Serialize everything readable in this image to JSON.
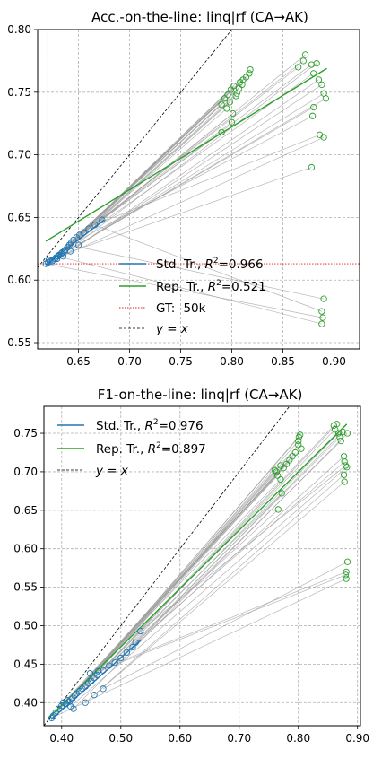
{
  "charts": [
    {
      "id": "acc",
      "title": "Acc.-on-the-line: linq|rf  (CA→AK)",
      "xlim": [
        0.61,
        0.925
      ],
      "ylim": [
        0.545,
        0.8
      ],
      "xticks": [
        "0.65",
        "0.70",
        "0.75",
        "0.80",
        "0.85",
        "0.90"
      ],
      "xtick_values": [
        0.65,
        0.7,
        0.75,
        0.8,
        0.85,
        0.9
      ],
      "yticks": [
        "0.55",
        "0.60",
        "0.65",
        "0.70",
        "0.75",
        "0.80"
      ],
      "ytick_values": [
        0.55,
        0.6,
        0.65,
        0.7,
        0.75,
        0.8
      ],
      "legend": {
        "std": {
          "prefix": "Std. Tr., ",
          "r2": "0.966"
        },
        "rep": {
          "prefix": "Rep. Tr., ",
          "r2": "0.521"
        },
        "gt": "GT: -50k",
        "yx": "y = x"
      },
      "gt": {
        "x": 0.62,
        "y": 0.613
      }
    },
    {
      "id": "f1",
      "title": "F1-on-the-line: linq|rf  (CA→AK)",
      "xlim": [
        0.37,
        0.905
      ],
      "ylim": [
        0.37,
        0.785
      ],
      "xticks": [
        "0.40",
        "0.50",
        "0.60",
        "0.70",
        "0.80",
        "0.90"
      ],
      "xtick_values": [
        0.4,
        0.5,
        0.6,
        0.7,
        0.8,
        0.9
      ],
      "yticks": [
        "0.40",
        "0.45",
        "0.50",
        "0.55",
        "0.60",
        "0.65",
        "0.70",
        "0.75"
      ],
      "ytick_values": [
        0.4,
        0.45,
        0.5,
        0.55,
        0.6,
        0.65,
        0.7,
        0.75
      ],
      "legend": {
        "std": {
          "prefix": "Std. Tr., ",
          "r2": "0.976"
        },
        "rep": {
          "prefix": "Rep. Tr., ",
          "r2": "0.897"
        },
        "yx": "y = x"
      }
    }
  ],
  "colors": {
    "std": "#1f77b4",
    "rep": "#2ca02c",
    "conn": "#9e9e9e",
    "gt": "#e41a1c",
    "grid": "#b0b0b0"
  },
  "chart_data": [
    {
      "type": "scatter",
      "title": "Acc.-on-the-line: linq|rf  (CA→AK)",
      "xlim": [
        0.61,
        0.925
      ],
      "ylim": [
        0.545,
        0.8
      ],
      "grid": true,
      "legend_placement": "lower-center",
      "series": [
        {
          "name": "Std. Tr., R²=0.966",
          "color": "#1f77b4",
          "points": [
            [
              0.618,
              0.613
            ],
            [
              0.62,
              0.614
            ],
            [
              0.622,
              0.615
            ],
            [
              0.624,
              0.615
            ],
            [
              0.625,
              0.616
            ],
            [
              0.627,
              0.617
            ],
            [
              0.628,
              0.618
            ],
            [
              0.63,
              0.619
            ],
            [
              0.631,
              0.62
            ],
            [
              0.633,
              0.621
            ],
            [
              0.634,
              0.622
            ],
            [
              0.636,
              0.623
            ],
            [
              0.637,
              0.624
            ],
            [
              0.639,
              0.626
            ],
            [
              0.641,
              0.628
            ],
            [
              0.643,
              0.63
            ],
            [
              0.645,
              0.632
            ],
            [
              0.648,
              0.634
            ],
            [
              0.651,
              0.636
            ],
            [
              0.655,
              0.638
            ],
            [
              0.66,
              0.641
            ],
            [
              0.666,
              0.644
            ],
            [
              0.673,
              0.648
            ],
            [
              0.621,
              0.616
            ],
            [
              0.629,
              0.617
            ],
            [
              0.635,
              0.619
            ],
            [
              0.642,
              0.623
            ],
            [
              0.65,
              0.628
            ]
          ],
          "fit": {
            "x": [
              0.618,
              0.675
            ],
            "y": [
              0.612,
              0.648
            ]
          }
        },
        {
          "name": "Rep. Tr., R²=0.521",
          "color": "#2ca02c",
          "points": [
            [
              0.79,
              0.74
            ],
            [
              0.793,
              0.745
            ],
            [
              0.796,
              0.748
            ],
            [
              0.799,
              0.752
            ],
            [
              0.802,
              0.755
            ],
            [
              0.805,
              0.749
            ],
            [
              0.808,
              0.758
            ],
            [
              0.811,
              0.76
            ],
            [
              0.814,
              0.762
            ],
            [
              0.817,
              0.765
            ],
            [
              0.795,
              0.737
            ],
            [
              0.798,
              0.742
            ],
            [
              0.801,
              0.733
            ],
            [
              0.804,
              0.747
            ],
            [
              0.807,
              0.753
            ],
            [
              0.81,
              0.756
            ],
            [
              0.79,
              0.718
            ],
            [
              0.8,
              0.726
            ],
            [
              0.818,
              0.768
            ],
            [
              0.865,
              0.77
            ],
            [
              0.87,
              0.775
            ],
            [
              0.872,
              0.78
            ],
            [
              0.878,
              0.772
            ],
            [
              0.88,
              0.765
            ],
            [
              0.883,
              0.773
            ],
            [
              0.885,
              0.76
            ],
            [
              0.888,
              0.756
            ],
            [
              0.89,
              0.749
            ],
            [
              0.892,
              0.745
            ],
            [
              0.88,
              0.738
            ],
            [
              0.879,
              0.731
            ],
            [
              0.886,
              0.716
            ],
            [
              0.89,
              0.714
            ],
            [
              0.878,
              0.69
            ],
            [
              0.89,
              0.585
            ],
            [
              0.888,
              0.575
            ],
            [
              0.889,
              0.57
            ],
            [
              0.888,
              0.565
            ]
          ],
          "fit": {
            "x": [
              0.618,
              0.893
            ],
            "y": [
              0.631,
              0.769
            ]
          }
        },
        {
          "name": "GT: -50k",
          "x": 0.62,
          "y": 0.613
        },
        {
          "name": "y = x",
          "x": [
            0.61,
            0.8
          ],
          "y": [
            0.61,
            0.8
          ]
        }
      ]
    },
    {
      "type": "scatter",
      "title": "F1-on-the-line: linq|rf  (CA→AK)",
      "xlim": [
        0.37,
        0.905
      ],
      "ylim": [
        0.37,
        0.785
      ],
      "grid": true,
      "legend_placement": "top-left",
      "series": [
        {
          "name": "Std. Tr., R²=0.976",
          "color": "#1f77b4",
          "points": [
            [
              0.383,
              0.38
            ],
            [
              0.386,
              0.383
            ],
            [
              0.39,
              0.387
            ],
            [
              0.395,
              0.392
            ],
            [
              0.4,
              0.396
            ],
            [
              0.403,
              0.4
            ],
            [
              0.407,
              0.398
            ],
            [
              0.41,
              0.403
            ],
            [
              0.413,
              0.401
            ],
            [
              0.418,
              0.405
            ],
            [
              0.422,
              0.409
            ],
            [
              0.425,
              0.412
            ],
            [
              0.43,
              0.415
            ],
            [
              0.435,
              0.418
            ],
            [
              0.44,
              0.421
            ],
            [
              0.445,
              0.425
            ],
            [
              0.45,
              0.428
            ],
            [
              0.455,
              0.432
            ],
            [
              0.46,
              0.436
            ],
            [
              0.47,
              0.442
            ],
            [
              0.48,
              0.448
            ],
            [
              0.49,
              0.452
            ],
            [
              0.5,
              0.458
            ],
            [
              0.51,
              0.465
            ],
            [
              0.52,
              0.472
            ],
            [
              0.525,
              0.478
            ],
            [
              0.533,
              0.493
            ],
            [
              0.415,
              0.395
            ],
            [
              0.42,
              0.392
            ],
            [
              0.44,
              0.4
            ],
            [
              0.455,
              0.41
            ],
            [
              0.47,
              0.418
            ],
            [
              0.448,
              0.438
            ],
            [
              0.462,
              0.441
            ]
          ],
          "fit": {
            "x": [
              0.382,
              0.535
            ],
            "y": [
              0.378,
              0.482
            ]
          }
        },
        {
          "name": "Rep. Tr., R²=0.897",
          "color": "#2ca02c",
          "points": [
            [
              0.76,
              0.702
            ],
            [
              0.763,
              0.7
            ],
            [
              0.765,
              0.695
            ],
            [
              0.77,
              0.69
            ],
            [
              0.775,
              0.705
            ],
            [
              0.78,
              0.71
            ],
            [
              0.785,
              0.715
            ],
            [
              0.79,
              0.72
            ],
            [
              0.795,
              0.725
            ],
            [
              0.8,
              0.74
            ],
            [
              0.801,
              0.745
            ],
            [
              0.8,
              0.735
            ],
            [
              0.803,
              0.748
            ],
            [
              0.805,
              0.73
            ],
            [
              0.77,
              0.708
            ],
            [
              0.772,
              0.672
            ],
            [
              0.766,
              0.651
            ],
            [
              0.86,
              0.76
            ],
            [
              0.862,
              0.755
            ],
            [
              0.865,
              0.762
            ],
            [
              0.868,
              0.75
            ],
            [
              0.87,
              0.745
            ],
            [
              0.872,
              0.74
            ],
            [
              0.875,
              0.752
            ],
            [
              0.877,
              0.72
            ],
            [
              0.878,
              0.713
            ],
            [
              0.88,
              0.708
            ],
            [
              0.882,
              0.706
            ],
            [
              0.883,
              0.75
            ],
            [
              0.877,
              0.696
            ],
            [
              0.878,
              0.687
            ],
            [
              0.883,
              0.583
            ],
            [
              0.881,
              0.57
            ],
            [
              0.88,
              0.566
            ],
            [
              0.881,
              0.561
            ]
          ],
          "fit": {
            "x": [
              0.378,
              0.882
            ],
            "y": [
              0.38,
              0.762
            ]
          }
        },
        {
          "name": "y = x",
          "x": [
            0.37,
            0.785
          ],
          "y": [
            0.37,
            0.785
          ]
        }
      ]
    }
  ]
}
